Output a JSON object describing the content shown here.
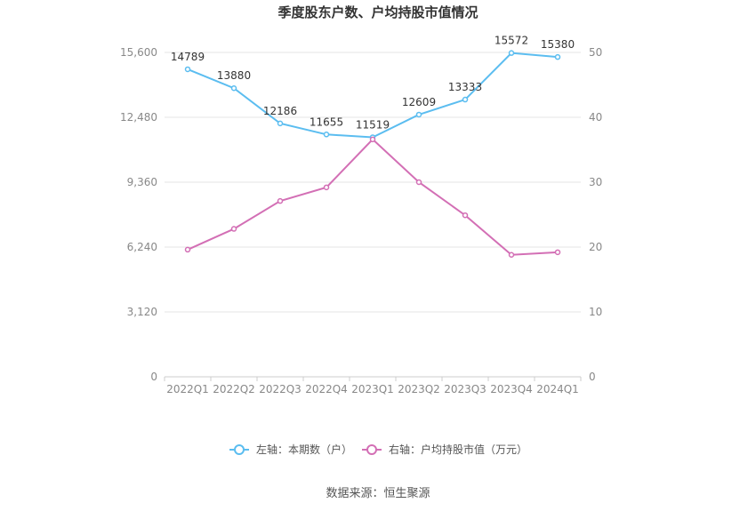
{
  "chart_data": {
    "type": "line",
    "title": "季度股东户数、户均持股市值情况",
    "categories": [
      "2022Q1",
      "2022Q2",
      "2022Q3",
      "2022Q4",
      "2023Q1",
      "2023Q2",
      "2023Q3",
      "2023Q4",
      "2024Q1"
    ],
    "series": [
      {
        "name": "左轴：本期数（户）",
        "axis": "left",
        "color": "#5bbdf0",
        "values": [
          14789,
          13880,
          12186,
          11655,
          11519,
          12609,
          13333,
          15572,
          15380
        ],
        "data_labels": [
          "14789",
          "13880",
          "12186",
          "11655",
          "11519",
          "12609",
          "13333",
          "15572",
          "15380"
        ]
      },
      {
        "name": "右轴：户均持股市值（万元）",
        "axis": "right",
        "color": "#d36fb5",
        "values": [
          19.6,
          22.8,
          27.1,
          29.2,
          36.6,
          30.0,
          24.9,
          18.8,
          19.2
        ]
      }
    ],
    "left_axis": {
      "min": 0,
      "max": 15600,
      "ticks": [
        "0",
        "3,120",
        "6,240",
        "9,360",
        "12,480",
        "15,600"
      ]
    },
    "right_axis": {
      "min": 0,
      "max": 50,
      "ticks": [
        "0",
        "10",
        "20",
        "30",
        "40",
        "50"
      ]
    },
    "grid": true,
    "legend_position": "bottom"
  },
  "source_text": "数据来源：恒生聚源"
}
